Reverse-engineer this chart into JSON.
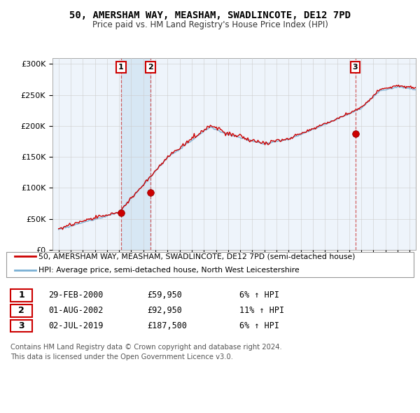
{
  "title": "50, AMERSHAM WAY, MEASHAM, SWADLINCOTE, DE12 7PD",
  "subtitle": "Price paid vs. HM Land Registry's House Price Index (HPI)",
  "legend_line1": "50, AMERSHAM WAY, MEASHAM, SWADLINCOTE, DE12 7PD (semi-detached house)",
  "legend_line2": "HPI: Average price, semi-detached house, North West Leicestershire",
  "transactions": [
    {
      "num": 1,
      "date": "29-FEB-2000",
      "price": "£59,950",
      "hpi": "6% ↑ HPI",
      "year": 2000.16
    },
    {
      "num": 2,
      "date": "01-AUG-2002",
      "price": "£92,950",
      "hpi": "11% ↑ HPI",
      "year": 2002.58
    },
    {
      "num": 3,
      "date": "02-JUL-2019",
      "price": "£187,500",
      "hpi": "6% ↑ HPI",
      "year": 2019.5
    }
  ],
  "sale_values": [
    59950,
    92950,
    187500
  ],
  "sale_years": [
    2000.16,
    2002.58,
    2019.5
  ],
  "footer": "Contains HM Land Registry data © Crown copyright and database right 2024.\nThis data is licensed under the Open Government Licence v3.0.",
  "red_color": "#cc0000",
  "blue_color": "#7ab0d4",
  "shade_color": "#ddeeff",
  "background_color": "#ffffff",
  "plot_bg": "#eef4fb",
  "grid_color": "#cccccc",
  "ylim": [
    0,
    310000
  ],
  "yticks": [
    0,
    50000,
    100000,
    150000,
    200000,
    250000,
    300000
  ],
  "xmin": 1994.5,
  "xmax": 2024.5
}
